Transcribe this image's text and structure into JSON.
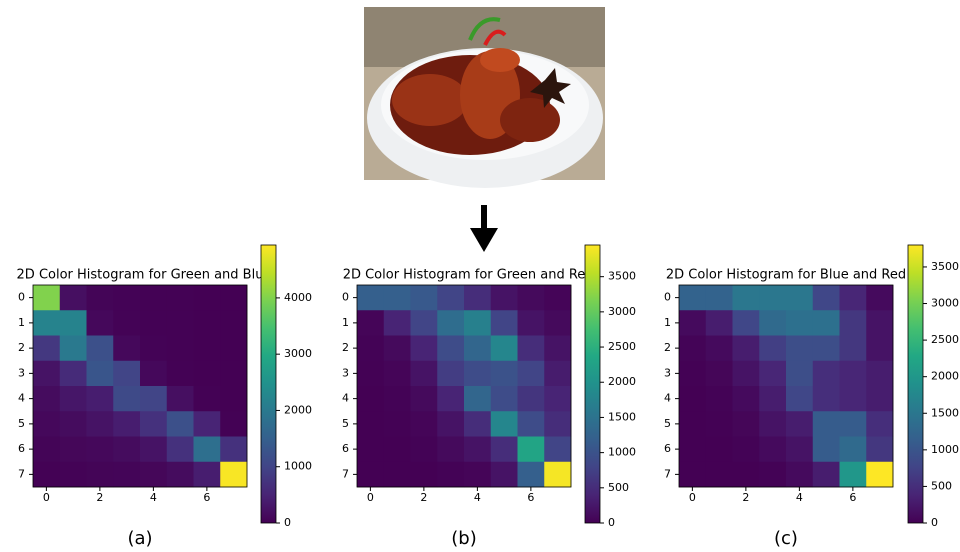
{
  "chart_data": [
    {
      "type": "heatmap",
      "title": "2D Color Histogram for Green and Blu",
      "caption": "(a)",
      "colormap": "viridis",
      "xlim": [
        -0.5,
        7.5
      ],
      "ylim": [
        7.5,
        -0.5
      ],
      "xticks": [
        0,
        2,
        4,
        6
      ],
      "yticks": [
        0,
        1,
        2,
        3,
        4,
        5,
        6,
        7
      ],
      "clim": [
        0,
        4940
      ],
      "cticks": [
        0,
        1000,
        2000,
        3000,
        4000
      ],
      "values": [
        [
          4000,
          200,
          50,
          30,
          20,
          10,
          5,
          0
        ],
        [
          2200,
          2200,
          100,
          30,
          20,
          10,
          5,
          0
        ],
        [
          800,
          2000,
          1200,
          100,
          30,
          10,
          5,
          0
        ],
        [
          250,
          600,
          1300,
          1000,
          100,
          20,
          5,
          0
        ],
        [
          150,
          300,
          400,
          1100,
          1000,
          200,
          20,
          0
        ],
        [
          100,
          150,
          250,
          400,
          700,
          1200,
          500,
          20
        ],
        [
          50,
          80,
          100,
          150,
          250,
          700,
          1800,
          700
        ],
        [
          20,
          30,
          50,
          60,
          80,
          150,
          400,
          4900
        ]
      ]
    },
    {
      "type": "heatmap",
      "title": "2D Color Histogram for Green and Re",
      "caption": "(b)",
      "colormap": "viridis",
      "xlim": [
        -0.5,
        7.5
      ],
      "ylim": [
        7.5,
        -0.5
      ],
      "xticks": [
        0,
        2,
        4,
        6
      ],
      "yticks": [
        0,
        1,
        2,
        3,
        4,
        5,
        6,
        7
      ],
      "clim": [
        0,
        3950
      ],
      "cticks": [
        0,
        500,
        1000,
        1500,
        2000,
        2500,
        3000,
        3500
      ],
      "values": [
        [
          1200,
          1200,
          1100,
          800,
          500,
          200,
          100,
          50
        ],
        [
          50,
          400,
          800,
          1400,
          1700,
          800,
          200,
          100
        ],
        [
          20,
          100,
          400,
          900,
          1300,
          1800,
          500,
          200
        ],
        [
          10,
          50,
          200,
          700,
          900,
          1000,
          800,
          300
        ],
        [
          5,
          20,
          100,
          400,
          1300,
          900,
          600,
          400
        ],
        [
          0,
          10,
          50,
          200,
          500,
          1800,
          900,
          500
        ],
        [
          0,
          5,
          20,
          100,
          200,
          500,
          2300,
          800
        ],
        [
          0,
          0,
          5,
          20,
          50,
          200,
          1200,
          3900
        ]
      ]
    },
    {
      "type": "heatmap",
      "title": "2D Color Histogram for Blue and Red",
      "caption": "(c)",
      "colormap": "viridis",
      "xlim": [
        -0.5,
        7.5
      ],
      "ylim": [
        7.5,
        -0.5
      ],
      "xticks": [
        0,
        2,
        4,
        6
      ],
      "yticks": [
        0,
        1,
        2,
        3,
        4,
        5,
        6,
        7
      ],
      "clim": [
        0,
        3800
      ],
      "cticks": [
        0,
        500,
        1000,
        1500,
        2000,
        2500,
        3000,
        3500
      ],
      "values": [
        [
          1200,
          1200,
          1500,
          1500,
          1500,
          800,
          400,
          100
        ],
        [
          100,
          300,
          800,
          1300,
          1400,
          1400,
          600,
          200
        ],
        [
          30,
          100,
          300,
          700,
          900,
          900,
          600,
          200
        ],
        [
          10,
          50,
          200,
          400,
          900,
          500,
          400,
          300
        ],
        [
          5,
          20,
          100,
          300,
          800,
          500,
          400,
          300
        ],
        [
          0,
          10,
          50,
          200,
          300,
          1100,
          1100,
          500
        ],
        [
          0,
          5,
          20,
          100,
          200,
          1100,
          1300,
          600
        ],
        [
          0,
          0,
          5,
          20,
          100,
          300,
          2000,
          3800
        ]
      ]
    }
  ]
}
